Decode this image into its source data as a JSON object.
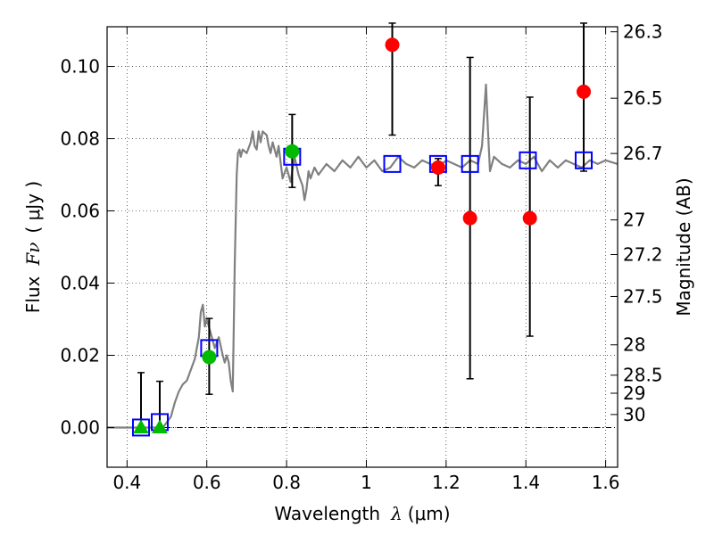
{
  "chart_data": {
    "type": "scatter",
    "xlabel": {
      "prefix": "Wavelength",
      "symbol": "λ",
      "unit": "(μm)"
    },
    "ylabel": {
      "prefix": "Flux",
      "symbol": "Fν",
      "unit": "( μJy )"
    },
    "y2label": "Magnitude (AB)",
    "xlim": [
      0.35,
      1.63
    ],
    "ylim": [
      -0.011,
      0.111
    ],
    "xticks": [
      0.4,
      0.6,
      0.8,
      1.0,
      1.2,
      1.4,
      1.6
    ],
    "xtick_labels": [
      "0.4",
      "0.6",
      "0.8",
      "1",
      "1.2",
      "1.4",
      "1.6"
    ],
    "yticks": [
      0.0,
      0.02,
      0.04,
      0.06,
      0.08,
      0.1
    ],
    "ytick_labels": [
      "0.00",
      "0.02",
      "0.04",
      "0.06",
      "0.08",
      "0.10"
    ],
    "y2ticks": [
      {
        "label": "26.3",
        "flux": 0.1096
      },
      {
        "label": "26.5",
        "flux": 0.0912
      },
      {
        "label": "26.7",
        "flux": 0.0759
      },
      {
        "label": "27",
        "flux": 0.0575
      },
      {
        "label": "27.2",
        "flux": 0.0479
      },
      {
        "label": "27.5",
        "flux": 0.0363
      },
      {
        "label": "28",
        "flux": 0.0229
      },
      {
        "label": "28.5",
        "flux": 0.0145
      },
      {
        "label": "29",
        "flux": 0.0095
      },
      {
        "label": "30",
        "flux": 0.0036
      }
    ],
    "grid": true,
    "sed_model": {
      "color": "#808080",
      "x": [
        0.35,
        0.4,
        0.45,
        0.47,
        0.49,
        0.51,
        0.52,
        0.53,
        0.54,
        0.55,
        0.56,
        0.57,
        0.575,
        0.58,
        0.585,
        0.59,
        0.595,
        0.6,
        0.61,
        0.62,
        0.63,
        0.64,
        0.645,
        0.65,
        0.655,
        0.66,
        0.665,
        0.67,
        0.675,
        0.678,
        0.682,
        0.685,
        0.69,
        0.7,
        0.71,
        0.715,
        0.72,
        0.725,
        0.73,
        0.735,
        0.74,
        0.75,
        0.755,
        0.76,
        0.765,
        0.77,
        0.775,
        0.78,
        0.79,
        0.8,
        0.81,
        0.82,
        0.83,
        0.84,
        0.845,
        0.85,
        0.855,
        0.86,
        0.87,
        0.88,
        0.9,
        0.92,
        0.94,
        0.96,
        0.98,
        1.0,
        1.02,
        1.04,
        1.06,
        1.08,
        1.1,
        1.12,
        1.14,
        1.16,
        1.18,
        1.2,
        1.22,
        1.24,
        1.26,
        1.28,
        1.29,
        1.3,
        1.305,
        1.31,
        1.32,
        1.34,
        1.36,
        1.38,
        1.4,
        1.42,
        1.44,
        1.46,
        1.48,
        1.5,
        1.52,
        1.54,
        1.56,
        1.58,
        1.6,
        1.63
      ],
      "y": [
        0.0,
        0.0,
        0.0,
        0.0,
        0.0,
        0.003,
        0.007,
        0.01,
        0.012,
        0.013,
        0.016,
        0.019,
        0.022,
        0.025,
        0.032,
        0.034,
        0.028,
        0.03,
        0.026,
        0.022,
        0.025,
        0.02,
        0.018,
        0.02,
        0.018,
        0.013,
        0.01,
        0.045,
        0.07,
        0.076,
        0.077,
        0.075,
        0.077,
        0.076,
        0.079,
        0.082,
        0.078,
        0.077,
        0.082,
        0.079,
        0.082,
        0.081,
        0.078,
        0.076,
        0.079,
        0.077,
        0.075,
        0.078,
        0.069,
        0.072,
        0.068,
        0.075,
        0.07,
        0.067,
        0.063,
        0.066,
        0.071,
        0.069,
        0.072,
        0.07,
        0.073,
        0.071,
        0.074,
        0.072,
        0.075,
        0.072,
        0.074,
        0.071,
        0.072,
        0.075,
        0.073,
        0.072,
        0.074,
        0.073,
        0.072,
        0.074,
        0.073,
        0.072,
        0.074,
        0.073,
        0.078,
        0.095,
        0.082,
        0.071,
        0.075,
        0.073,
        0.072,
        0.074,
        0.073,
        0.075,
        0.071,
        0.074,
        0.072,
        0.074,
        0.073,
        0.072,
        0.074,
        0.073,
        0.074,
        0.073
      ]
    },
    "model_photometry": {
      "marker": "square",
      "color": "#0000ff",
      "x": [
        0.435,
        0.482,
        0.606,
        0.814,
        1.065,
        1.18,
        1.26,
        1.405,
        1.545
      ],
      "y": [
        0.0,
        0.0015,
        0.022,
        0.075,
        0.073,
        0.073,
        0.073,
        0.074,
        0.074
      ]
    },
    "observed_red": {
      "marker": "circle",
      "color": "#ff0000",
      "x": [
        1.065,
        1.18,
        1.26,
        1.41,
        1.545
      ],
      "y": [
        0.106,
        0.072,
        0.058,
        0.058,
        0.093
      ],
      "yerr_low": [
        0.081,
        0.067,
        0.0135,
        0.0253,
        0.071
      ],
      "yerr_high": [
        0.112,
        0.0745,
        0.1025,
        0.0915,
        0.112
      ]
    },
    "observed_green_circles": {
      "marker": "circle",
      "color": "#00bb00",
      "x": [
        0.606,
        0.814
      ],
      "y": [
        0.0195,
        0.0765
      ],
      "yerr_low": [
        0.0092,
        0.0665
      ],
      "yerr_high": [
        0.0302,
        0.0867
      ]
    },
    "upper_limits_green": {
      "marker": "triangle",
      "color": "#00bb00",
      "x": [
        0.435,
        0.482
      ],
      "y": [
        0.0,
        0.0
      ],
      "yerr_low": [
        0.0,
        0.0
      ],
      "yerr_high": [
        0.0152,
        0.0128
      ]
    }
  }
}
